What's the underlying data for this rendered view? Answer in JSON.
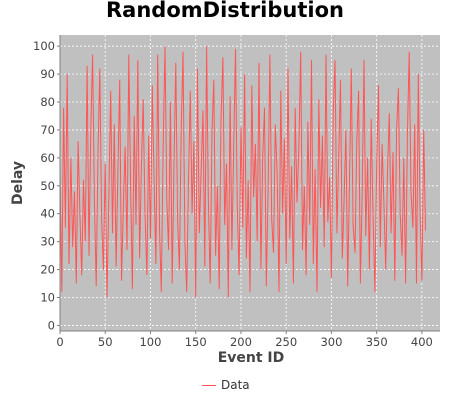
{
  "chart_data": {
    "type": "line",
    "title": "RandomDistribution",
    "xlabel": "Event ID",
    "ylabel": "Delay",
    "xlim": [
      0,
      420
    ],
    "ylim": [
      -2,
      104
    ],
    "xticks": [
      0,
      50,
      100,
      150,
      200,
      250,
      300,
      350,
      400
    ],
    "yticks": [
      0,
      10,
      20,
      30,
      40,
      50,
      60,
      70,
      80,
      90,
      100
    ],
    "grid": true,
    "legend_position": "bottom",
    "series": [
      {
        "name": "Data",
        "color": "#ff5555",
        "x": [
          0,
          2,
          4,
          6,
          8,
          10,
          12,
          14,
          16,
          18,
          20,
          22,
          24,
          26,
          28,
          30,
          32,
          34,
          36,
          38,
          40,
          42,
          44,
          46,
          48,
          50,
          52,
          54,
          56,
          58,
          60,
          62,
          64,
          66,
          68,
          70,
          72,
          74,
          76,
          78,
          80,
          82,
          84,
          86,
          88,
          90,
          92,
          94,
          96,
          98,
          100,
          102,
          104,
          106,
          108,
          110,
          112,
          114,
          116,
          118,
          120,
          122,
          124,
          126,
          128,
          130,
          132,
          134,
          136,
          138,
          140,
          142,
          144,
          146,
          148,
          150,
          152,
          154,
          156,
          158,
          160,
          162,
          164,
          166,
          168,
          170,
          172,
          174,
          176,
          178,
          180,
          182,
          184,
          186,
          188,
          190,
          192,
          194,
          196,
          198,
          200,
          202,
          204,
          206,
          208,
          210,
          212,
          214,
          216,
          218,
          220,
          222,
          224,
          226,
          228,
          230,
          232,
          234,
          236,
          238,
          240,
          242,
          244,
          246,
          248,
          250,
          252,
          254,
          256,
          258,
          260,
          262,
          264,
          266,
          268,
          270,
          272,
          274,
          276,
          278,
          280,
          282,
          284,
          286,
          288,
          290,
          292,
          294,
          296,
          298,
          300,
          302,
          304,
          306,
          308,
          310,
          312,
          314,
          316,
          318,
          320,
          322,
          324,
          326,
          328,
          330,
          332,
          334,
          336,
          338,
          340,
          342,
          344,
          346,
          348,
          350,
          352,
          354,
          356,
          358,
          360,
          362,
          364,
          366,
          368,
          370,
          372,
          374,
          376,
          378,
          380,
          382,
          384,
          386,
          388,
          390,
          392,
          394,
          396,
          398,
          400,
          402,
          404
        ],
        "values": [
          55,
          12,
          78,
          35,
          90,
          22,
          60,
          28,
          48,
          15,
          66,
          40,
          18,
          52,
          30,
          93,
          25,
          70,
          97,
          45,
          14,
          62,
          92,
          38,
          20,
          58,
          10,
          47,
          84,
          33,
          72,
          21,
          55,
          88,
          16,
          42,
          64,
          27,
          97,
          50,
          13,
          75,
          36,
          95,
          24,
          57,
          81,
          40,
          18,
          68,
          31,
          86,
          52,
          22,
          97,
          35,
          12,
          63,
          100,
          45,
          27,
          80,
          15,
          58,
          94,
          38,
          20,
          70,
          98,
          30,
          12,
          52,
          84,
          40,
          66,
          10,
          92,
          33,
          55,
          77,
          21,
          100,
          44,
          15,
          69,
          88,
          25,
          50,
          13,
          74,
          96,
          36,
          58,
          10,
          82,
          27,
          64,
          99,
          42,
          18,
          71,
          35,
          90,
          24,
          52,
          12,
          86,
          46,
          65,
          30,
          94,
          20,
          60,
          78,
          14,
          48,
          97,
          38,
          26,
          72,
          55,
          12,
          84,
          40,
          67,
          22,
          92,
          31,
          57,
          15,
          78,
          44,
          64,
          98,
          27,
          50,
          18,
          73,
          36,
          95,
          22,
          56,
          12,
          81,
          42,
          68,
          28,
          97,
          37,
          53,
          17,
          76,
          95,
          33,
          60,
          88,
          24,
          45,
          70,
          14,
          52,
          92,
          36,
          26,
          66,
          84,
          15,
          48,
          95,
          32,
          60,
          20,
          74,
          40,
          12,
          58,
          86,
          28,
          65,
          44,
          20,
          55,
          76,
          33,
          62,
          16,
          70,
          85,
          40,
          25,
          60,
          15,
          68,
          98,
          48,
          35,
          72,
          15,
          90,
          40,
          16,
          70,
          34
        ]
      }
    ]
  }
}
